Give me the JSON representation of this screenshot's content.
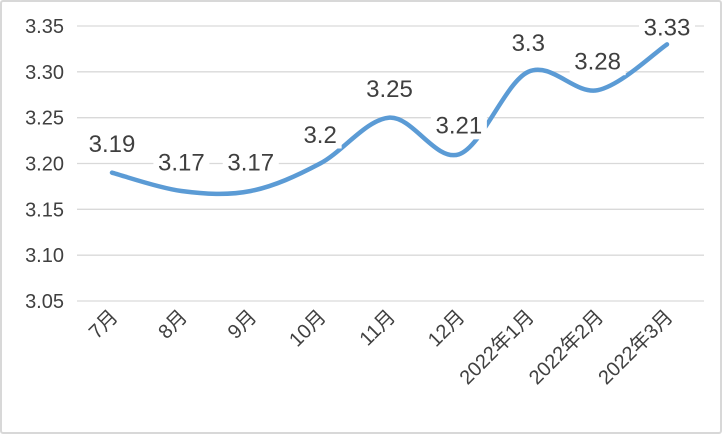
{
  "chart_data": {
    "type": "line",
    "title": "",
    "categories": [
      "7月",
      "8月",
      "9月",
      "10月",
      "11月",
      "12月",
      "2022年1月",
      "2022年2月",
      "2022年3月"
    ],
    "series": [
      {
        "name": "",
        "values": [
          3.19,
          3.17,
          3.17,
          3.2,
          3.25,
          3.21,
          3.3,
          3.28,
          3.33
        ],
        "data_labels": [
          "3.19",
          "3.17",
          "3.17",
          "3.2",
          "3.25",
          "3.21",
          "3.3",
          "3.28",
          "3.33"
        ]
      }
    ],
    "xlabel": "",
    "ylabel": "",
    "ylim": [
      3.05,
      3.35
    ],
    "y_tick_step": 0.05,
    "y_tick_labels": [
      "3.35",
      "3.30",
      "3.25",
      "3.20",
      "3.15",
      "3.10",
      "3.05"
    ],
    "grid": true,
    "smooth_line": true,
    "legend_position": "none",
    "colors": {
      "line": "#5B9BD5",
      "gridline": "#D9D9D9",
      "axis_text": "#404040",
      "data_label_text": "#3F3F3F",
      "background": "#FFFFFF",
      "frame_border": "#D8D8D8"
    }
  }
}
